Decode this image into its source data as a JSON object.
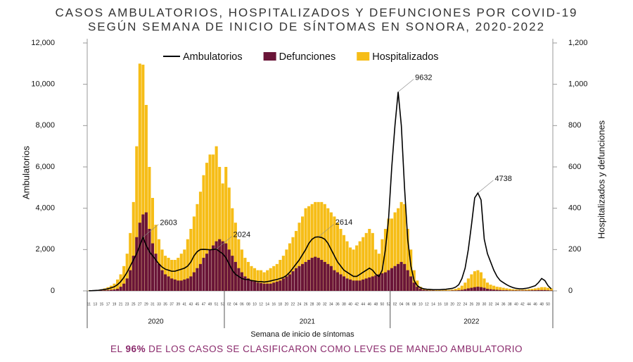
{
  "chart_data": {
    "type": "bar_line",
    "title": "CASOS AMBULATORIOS, HOSPITALIZADOS Y DEFUNCIONES POR COVID-19",
    "subtitle": "SEGÚN SEMANA DE INICIO DE SÍNTOMAS EN SONORA, 2020-2022",
    "ylabel": "Ambulatorios",
    "y2label": "Hospitalizados y defunciones",
    "xlabel": "Semana de inicio de síntomas",
    "footer": [
      "EL",
      "96%",
      "DE LOS CASOS SE CLASIFICARON COMO LEVES DE MANEJO AMBULATORIO"
    ],
    "groups": [
      {
        "label": "2020",
        "count": 43
      },
      {
        "label": "2021",
        "count": 52
      },
      {
        "label": "2022",
        "count": 51
      }
    ],
    "categories": [
      "11",
      null,
      "13",
      null,
      "15",
      null,
      "17",
      null,
      "19",
      null,
      "21",
      null,
      "23",
      null,
      "25",
      null,
      "27",
      null,
      "29",
      null,
      "31",
      null,
      "33",
      null,
      "35",
      null,
      "37",
      null,
      "39",
      null,
      "41",
      null,
      "43",
      null,
      "45",
      null,
      "47",
      null,
      "49",
      null,
      "51",
      null,
      "53",
      null,
      "02",
      null,
      "04",
      null,
      "06",
      null,
      "08",
      null,
      "10",
      null,
      "12",
      null,
      "14",
      null,
      "16",
      null,
      "18",
      null,
      "20",
      null,
      "22",
      null,
      "24",
      null,
      "26",
      null,
      "28",
      null,
      "30",
      null,
      "32",
      null,
      "34",
      null,
      "36",
      null,
      "38",
      null,
      "40",
      null,
      "42",
      null,
      "44",
      null,
      "46",
      null,
      "48",
      null,
      "50",
      null,
      "52",
      null,
      "02",
      null,
      "04",
      null,
      "06",
      null,
      "08",
      null,
      "10",
      null,
      "12",
      null,
      "14",
      null,
      "16",
      null,
      "18",
      null,
      "20",
      null,
      "22",
      null,
      "24",
      null,
      "26",
      null,
      "28",
      null,
      "30",
      null,
      "32",
      null,
      "34",
      null,
      "36",
      null,
      "38",
      null,
      "40",
      null,
      "42",
      null,
      "44",
      null,
      "46",
      null,
      "48",
      null,
      "50",
      null
    ],
    "series": [
      {
        "name": "Hospitalizados",
        "color": "#f6bd17",
        "axis": "y2",
        "kind": "bar",
        "values": [
          1,
          2,
          3,
          5,
          8,
          12,
          18,
          25,
          35,
          55,
          80,
          120,
          180,
          280,
          430,
          700,
          1100,
          1095,
          900,
          600,
          450,
          320,
          250,
          200,
          170,
          160,
          150,
          150,
          160,
          180,
          200,
          250,
          300,
          360,
          420,
          480,
          560,
          620,
          660,
          660,
          700,
          600,
          520,
          600,
          500,
          400,
          330,
          250,
          200,
          160,
          140,
          120,
          110,
          100,
          100,
          90,
          100,
          110,
          120,
          130,
          150,
          170,
          200,
          230,
          260,
          290,
          330,
          360,
          400,
          410,
          420,
          430,
          430,
          430,
          420,
          400,
          380,
          360,
          330,
          300,
          270,
          240,
          210,
          200,
          220,
          240,
          260,
          280,
          300,
          280,
          200,
          180,
          250,
          300,
          350,
          350,
          380,
          400,
          430,
          420,
          300,
          200,
          100,
          50,
          20,
          10,
          8,
          5,
          5,
          4,
          4,
          4,
          5,
          5,
          6,
          10,
          15,
          25,
          40,
          60,
          80,
          95,
          100,
          90,
          60,
          40,
          30,
          25,
          20,
          18,
          15,
          12,
          10,
          8,
          7,
          6,
          6,
          7,
          8,
          10,
          12,
          15,
          18,
          18,
          15,
          12
        ]
      },
      {
        "name": "Defunciones",
        "color": "#6a1538",
        "axis": "y2",
        "kind": "bar",
        "values": [
          0,
          0,
          1,
          1,
          2,
          3,
          4,
          5,
          7,
          10,
          20,
          35,
          60,
          100,
          170,
          260,
          330,
          370,
          380,
          300,
          230,
          180,
          130,
          100,
          80,
          70,
          60,
          55,
          50,
          50,
          55,
          60,
          70,
          90,
          110,
          130,
          160,
          180,
          200,
          220,
          240,
          250,
          240,
          230,
          200,
          170,
          140,
          110,
          90,
          70,
          60,
          50,
          45,
          40,
          38,
          35,
          35,
          35,
          40,
          45,
          50,
          60,
          70,
          80,
          95,
          110,
          120,
          130,
          140,
          150,
          160,
          165,
          160,
          150,
          140,
          130,
          120,
          100,
          90,
          80,
          70,
          60,
          55,
          50,
          50,
          50,
          55,
          60,
          65,
          70,
          75,
          80,
          85,
          90,
          100,
          110,
          120,
          130,
          140,
          130,
          100,
          70,
          40,
          20,
          10,
          5,
          3,
          2,
          2,
          1,
          1,
          1,
          1,
          1,
          2,
          2,
          3,
          5,
          8,
          12,
          15,
          18,
          20,
          18,
          15,
          10,
          8,
          6,
          5,
          4,
          3,
          3,
          2,
          2,
          2,
          2,
          2,
          2,
          2,
          3,
          3,
          4,
          4,
          4,
          3,
          2
        ]
      },
      {
        "name": "Ambulatorios",
        "color": "#000000",
        "kind": "line",
        "values": [
          5,
          10,
          20,
          30,
          50,
          70,
          100,
          150,
          200,
          300,
          450,
          650,
          900,
          1200,
          1500,
          1800,
          2200,
          2603,
          2200,
          1900,
          1700,
          1500,
          1300,
          1150,
          1050,
          1000,
          950,
          950,
          1000,
          1050,
          1100,
          1200,
          1400,
          1700,
          1900,
          2000,
          2010,
          2000,
          1990,
          2000,
          2024,
          1900,
          1800,
          1600,
          1300,
          1000,
          800,
          700,
          600,
          550,
          550,
          500,
          480,
          450,
          450,
          430,
          450,
          480,
          520,
          550,
          600,
          650,
          750,
          900,
          1100,
          1300,
          1500,
          1750,
          2000,
          2300,
          2500,
          2600,
          2614,
          2580,
          2500,
          2300,
          2000,
          1700,
          1400,
          1200,
          1000,
          900,
          800,
          700,
          700,
          800,
          900,
          1000,
          1100,
          1000,
          800,
          700,
          1000,
          2000,
          3500,
          6000,
          8000,
          9632,
          8000,
          5000,
          2500,
          1200,
          500,
          250,
          150,
          100,
          80,
          70,
          60,
          60,
          60,
          70,
          80,
          100,
          120,
          180,
          300,
          600,
          1100,
          2000,
          3200,
          4500,
          4738,
          4400,
          2500,
          1800,
          1400,
          1000,
          700,
          500,
          400,
          300,
          220,
          160,
          120,
          100,
          100,
          120,
          150,
          200,
          250,
          400,
          600,
          500,
          250,
          100
        ],
        "value_labels": [
          null,
          null,
          null,
          null,
          null,
          null,
          null,
          null,
          null,
          null,
          null,
          null,
          null,
          null,
          null,
          null,
          null,
          "2603",
          null,
          null,
          null,
          null,
          null,
          null,
          null,
          null,
          null,
          null,
          null,
          null,
          null,
          null,
          null,
          null,
          null,
          null,
          null,
          null,
          null,
          null,
          "2024",
          null,
          null,
          null,
          null,
          null,
          null,
          null,
          null,
          null,
          null,
          null,
          null,
          null,
          null,
          null,
          null,
          null,
          null,
          null,
          null,
          null,
          null,
          null,
          null,
          null,
          null,
          null,
          null,
          null,
          null,
          null,
          "2614",
          null,
          null,
          null,
          null,
          null,
          null,
          null,
          null,
          null,
          null,
          null,
          null,
          null,
          null,
          null,
          null,
          null,
          null,
          null,
          null,
          null,
          null,
          null,
          null,
          "9632",
          null,
          null,
          null,
          null,
          null,
          null,
          null,
          null,
          null,
          null,
          null,
          null,
          null,
          null,
          null,
          null,
          null,
          null,
          null,
          null,
          null,
          null,
          null,
          null,
          "4738",
          null,
          null,
          null,
          null,
          null,
          null,
          null,
          null,
          null,
          null,
          null,
          null,
          null,
          null,
          null,
          null,
          null,
          null,
          null,
          null,
          null,
          null,
          null
        ]
      }
    ],
    "ylim": [
      0,
      12000
    ],
    "yticks": [
      0,
      {
        "value": 2000,
        "label": "2,000"
      },
      {
        "value": 4000,
        "label": "4,000"
      },
      {
        "value": 6000,
        "label": "6,000"
      },
      {
        "value": 8000,
        "label": "8,000"
      },
      {
        "value": 10000,
        "label": "10,000"
      },
      {
        "value": 12000,
        "label": "12,000"
      }
    ],
    "y2lim": [
      0,
      1200
    ],
    "y2ticks": [
      0,
      200,
      400,
      600,
      800,
      {
        "value": 1000,
        "label": "1,000"
      },
      {
        "value": 1200,
        "label": "1,200"
      }
    ],
    "grid": false
  }
}
